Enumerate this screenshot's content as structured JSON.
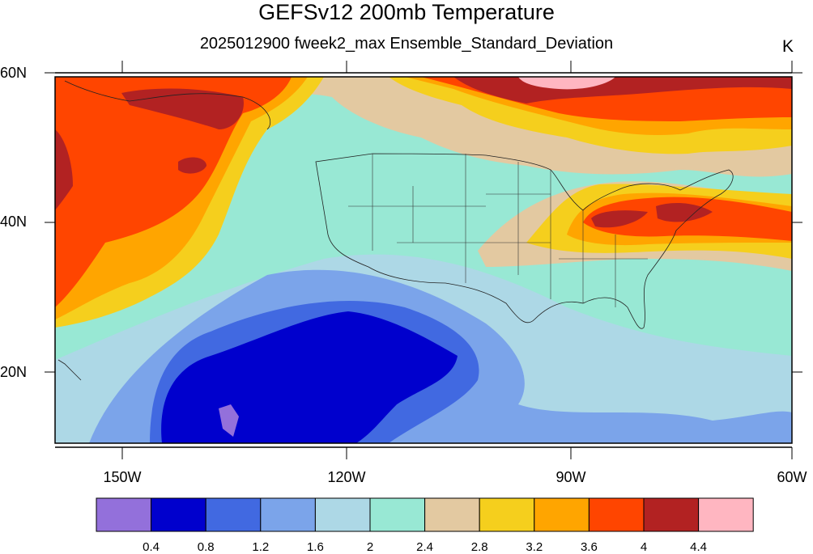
{
  "title": "GEFSv12 200mb Temperature",
  "subtitle": "2025012900 fweek2_max Ensemble_Standard_Deviation",
  "units": "K",
  "lat_labels": [
    "60N",
    "40N",
    "20N"
  ],
  "lon_labels": [
    "150W",
    "120W",
    "90W",
    "60W"
  ],
  "colorbar": {
    "colors": [
      "#9370db",
      "#0000cd",
      "#4169e1",
      "#7ba4ea",
      "#add8e6",
      "#98e8d4",
      "#e3c9a1",
      "#f5cf1d",
      "#ffa500",
      "#ff4500",
      "#b22222",
      "#ffb6c1"
    ],
    "labels": [
      "0.4",
      "0.8",
      "1.2",
      "1.6",
      "2",
      "2.4",
      "2.8",
      "3.2",
      "3.6",
      "4",
      "4.4"
    ]
  },
  "colors": {
    "purple": "#9370db",
    "dark_blue": "#0000cd",
    "royal_blue": "#4169e1",
    "blue": "#7ba4ea",
    "light_blue": "#add8e6",
    "aqua": "#98e8d4",
    "tan": "#e3c9a1",
    "yellow": "#f5cf1d",
    "orange": "#ffa500",
    "red_orange": "#ff4500",
    "dark_red": "#b22222",
    "pink": "#ffb6c1"
  }
}
